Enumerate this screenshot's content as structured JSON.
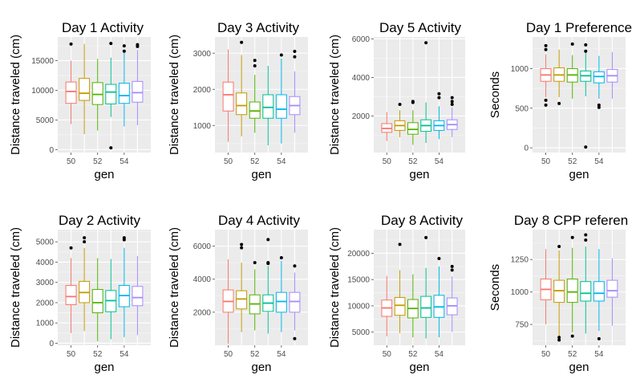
{
  "colors": {
    "panel_bg": "#ebebeb",
    "grid_major": "#ffffff",
    "grid_minor": "#f5f5f5",
    "outlier": "#000000",
    "groups": [
      "#F8766D",
      "#C49A00",
      "#53B400",
      "#00C094",
      "#00B6EB",
      "#A58AFF",
      "#FB61D7"
    ]
  },
  "chart_data": [
    {
      "type": "boxplot",
      "title": "Day 1 Activity",
      "xlabel": "gen",
      "ylabel": "Distance traveled (cm)",
      "categories": [
        "50",
        "51",
        "52",
        "53",
        "54",
        "55"
      ],
      "xticks": [
        "50",
        "52",
        "54"
      ],
      "yticks": [
        "0",
        "5000",
        "10000",
        "15000"
      ],
      "ylim": [
        -500,
        19000
      ],
      "boxes": [
        {
          "group": "50",
          "min": 4300,
          "q1": 7800,
          "median": 9800,
          "q3": 11400,
          "max": 15000,
          "outliers": [
            17800
          ]
        },
        {
          "group": "51",
          "min": 2600,
          "q1": 8300,
          "median": 9500,
          "q3": 12000,
          "max": 17800,
          "outliers": []
        },
        {
          "group": "52",
          "min": 3200,
          "q1": 7600,
          "median": 9300,
          "q3": 11300,
          "max": 15300,
          "outliers": []
        },
        {
          "group": "53",
          "min": 5500,
          "q1": 7700,
          "median": 9700,
          "q3": 11000,
          "max": 15500,
          "outliers": [
            300,
            17900
          ]
        },
        {
          "group": "54",
          "min": 3900,
          "q1": 7800,
          "median": 9100,
          "q3": 11200,
          "max": 16300,
          "outliers": [
            16600,
            17500
          ]
        },
        {
          "group": "55",
          "min": 4100,
          "q1": 8000,
          "median": 9600,
          "q3": 11500,
          "max": 16800,
          "outliers": [
            17400,
            17700
          ]
        }
      ]
    },
    {
      "type": "boxplot",
      "title": "Day 3 Activity",
      "xlabel": "gen",
      "ylabel": "Distance traveled (cm)",
      "categories": [
        "50",
        "51",
        "52",
        "53",
        "54",
        "55"
      ],
      "xticks": [
        "50",
        "52",
        "54"
      ],
      "yticks": [
        "1000",
        "2000",
        "3000"
      ],
      "ylim": [
        250,
        3450
      ],
      "boxes": [
        {
          "group": "50",
          "min": 550,
          "q1": 1400,
          "median": 1850,
          "q3": 2200,
          "max": 3100,
          "outliers": []
        },
        {
          "group": "51",
          "min": 700,
          "q1": 1300,
          "median": 1550,
          "q3": 1900,
          "max": 2950,
          "outliers": [
            3300
          ]
        },
        {
          "group": "52",
          "min": 800,
          "q1": 1200,
          "median": 1400,
          "q3": 1650,
          "max": 2400,
          "outliers": [
            2650,
            2800
          ]
        },
        {
          "group": "53",
          "min": 450,
          "q1": 1200,
          "median": 1500,
          "q3": 1850,
          "max": 2650,
          "outliers": []
        },
        {
          "group": "54",
          "min": 500,
          "q1": 1200,
          "median": 1450,
          "q3": 1850,
          "max": 2850,
          "outliers": [
            2950
          ]
        },
        {
          "group": "55",
          "min": 800,
          "q1": 1300,
          "median": 1550,
          "q3": 1800,
          "max": 2500,
          "outliers": [
            2900,
            3050
          ]
        }
      ]
    },
    {
      "type": "boxplot",
      "title": "Day 5 Activity",
      "xlabel": "gen",
      "ylabel": "Distance traveled (cm)",
      "categories": [
        "50",
        "51",
        "52",
        "53",
        "54",
        "55"
      ],
      "xticks": [
        "50",
        "52",
        "54"
      ],
      "yticks": [
        "2000",
        "4000",
        "6000"
      ],
      "ylim": [
        100,
        6100
      ],
      "boxes": [
        {
          "group": "50",
          "min": 700,
          "q1": 1150,
          "median": 1350,
          "q3": 1600,
          "max": 2200,
          "outliers": []
        },
        {
          "group": "51",
          "min": 900,
          "q1": 1250,
          "median": 1500,
          "q3": 1750,
          "max": 2300,
          "outliers": [
            2600
          ]
        },
        {
          "group": "52",
          "min": 500,
          "q1": 1050,
          "median": 1300,
          "q3": 1650,
          "max": 2300,
          "outliers": [
            2700,
            2750
          ]
        },
        {
          "group": "53",
          "min": 600,
          "q1": 1200,
          "median": 1500,
          "q3": 1800,
          "max": 2700,
          "outliers": [
            5800
          ]
        },
        {
          "group": "54",
          "min": 800,
          "q1": 1250,
          "median": 1500,
          "q3": 1750,
          "max": 2500,
          "outliers": [
            2950,
            3150
          ]
        },
        {
          "group": "55",
          "min": 900,
          "q1": 1300,
          "median": 1550,
          "q3": 1800,
          "max": 2450,
          "outliers": [
            2600,
            2750,
            2950
          ]
        }
      ]
    },
    {
      "type": "boxplot",
      "title": "Day 1 Preference",
      "xlabel": "gen",
      "ylabel": "Seconds",
      "categories": [
        "50",
        "51",
        "52",
        "53",
        "54",
        "55"
      ],
      "xticks": [
        "50",
        "52",
        "54"
      ],
      "yticks": [
        "0",
        "500",
        "1000"
      ],
      "ylim": [
        -60,
        1400
      ],
      "boxes": [
        {
          "group": "50",
          "min": 640,
          "q1": 840,
          "median": 920,
          "q3": 1000,
          "max": 1180,
          "outliers": [
            540,
            600,
            1240,
            1290
          ]
        },
        {
          "group": "51",
          "min": 640,
          "q1": 840,
          "median": 920,
          "q3": 1010,
          "max": 1240,
          "outliers": [
            560
          ]
        },
        {
          "group": "52",
          "min": 620,
          "q1": 830,
          "median": 920,
          "q3": 1000,
          "max": 1170,
          "outliers": [
            1310
          ]
        },
        {
          "group": "53",
          "min": 650,
          "q1": 840,
          "median": 910,
          "q3": 970,
          "max": 1200,
          "outliers": [
            10,
            1220,
            1300
          ]
        },
        {
          "group": "54",
          "min": 620,
          "q1": 820,
          "median": 900,
          "q3": 960,
          "max": 1160,
          "outliers": [
            510,
            540
          ]
        },
        {
          "group": "55",
          "min": 620,
          "q1": 830,
          "median": 910,
          "q3": 990,
          "max": 1210,
          "outliers": []
        }
      ]
    },
    {
      "type": "boxplot",
      "title": "Day 2 Activity",
      "xlabel": "gen",
      "ylabel": "Distance traveled (cm)",
      "categories": [
        "50",
        "51",
        "52",
        "53",
        "54",
        "55"
      ],
      "xticks": [
        "50",
        "52",
        "54"
      ],
      "yticks": [
        "0",
        "1000",
        "2000",
        "3000",
        "4000",
        "5000"
      ],
      "ylim": [
        -100,
        5600
      ],
      "boxes": [
        {
          "group": "50",
          "min": 500,
          "q1": 1900,
          "median": 2300,
          "q3": 2850,
          "max": 4200,
          "outliers": [
            4700
          ]
        },
        {
          "group": "51",
          "min": 600,
          "q1": 2000,
          "median": 2500,
          "q3": 3050,
          "max": 4700,
          "outliers": [
            5000,
            5200
          ]
        },
        {
          "group": "52",
          "min": 100,
          "q1": 1500,
          "median": 2000,
          "q3": 2650,
          "max": 4200,
          "outliers": []
        },
        {
          "group": "53",
          "min": 200,
          "q1": 1550,
          "median": 2100,
          "q3": 2600,
          "max": 4150,
          "outliers": []
        },
        {
          "group": "54",
          "min": 300,
          "q1": 1800,
          "median": 2350,
          "q3": 2850,
          "max": 4700,
          "outliers": [
            5100,
            5200
          ]
        },
        {
          "group": "55",
          "min": 400,
          "q1": 1850,
          "median": 2250,
          "q3": 2800,
          "max": 4300,
          "outliers": []
        }
      ]
    },
    {
      "type": "boxplot",
      "title": "Day 4 Activity",
      "xlabel": "gen",
      "ylabel": "Distance traveled (cm)",
      "categories": [
        "50",
        "51",
        "52",
        "53",
        "54",
        "55"
      ],
      "xticks": [
        "50",
        "52",
        "54"
      ],
      "yticks": [
        "2000",
        "4000",
        "6000"
      ],
      "ylim": [
        0,
        7000
      ],
      "boxes": [
        {
          "group": "50",
          "min": 100,
          "q1": 2000,
          "median": 2650,
          "q3": 3350,
          "max": 5200,
          "outliers": []
        },
        {
          "group": "51",
          "min": 800,
          "q1": 2200,
          "median": 2800,
          "q3": 3300,
          "max": 5000,
          "outliers": [
            5900,
            6100
          ]
        },
        {
          "group": "52",
          "min": 900,
          "q1": 1900,
          "median": 2500,
          "q3": 3050,
          "max": 4600,
          "outliers": [
            5000
          ]
        },
        {
          "group": "53",
          "min": 700,
          "q1": 2050,
          "median": 2550,
          "q3": 3050,
          "max": 4800,
          "outliers": [
            4950,
            5000,
            6400
          ]
        },
        {
          "group": "54",
          "min": 800,
          "q1": 2000,
          "median": 2650,
          "q3": 3200,
          "max": 5100,
          "outliers": [
            5300
          ]
        },
        {
          "group": "55",
          "min": 900,
          "q1": 2000,
          "median": 2650,
          "q3": 3200,
          "max": 4400,
          "outliers": [
            400,
            4800
          ]
        }
      ]
    },
    {
      "type": "boxplot",
      "title": "Day 8 Activity",
      "xlabel": "gen",
      "ylabel": "Distance traveled (cm)",
      "categories": [
        "50",
        "51",
        "52",
        "53",
        "54",
        "55"
      ],
      "xticks": [
        "50",
        "52",
        "54"
      ],
      "yticks": [
        "5000",
        "10000",
        "15000",
        "20000"
      ],
      "ylim": [
        2500,
        24500
      ],
      "boxes": [
        {
          "group": "50",
          "min": 4200,
          "q1": 8000,
          "median": 9600,
          "q3": 11100,
          "max": 15700,
          "outliers": []
        },
        {
          "group": "51",
          "min": 4800,
          "q1": 8200,
          "median": 10100,
          "q3": 11600,
          "max": 16800,
          "outliers": [
            21700
          ]
        },
        {
          "group": "52",
          "min": 4000,
          "q1": 7700,
          "median": 9500,
          "q3": 11200,
          "max": 16000,
          "outliers": []
        },
        {
          "group": "53",
          "min": 3800,
          "q1": 7800,
          "median": 9600,
          "q3": 11800,
          "max": 17200,
          "outliers": [
            23000
          ]
        },
        {
          "group": "54",
          "min": 4000,
          "q1": 7800,
          "median": 9800,
          "q3": 12000,
          "max": 17500,
          "outliers": [
            19000
          ]
        },
        {
          "group": "55",
          "min": 5000,
          "q1": 8300,
          "median": 10000,
          "q3": 11500,
          "max": 15600,
          "outliers": [
            16800,
            17500
          ]
        }
      ]
    },
    {
      "type": "boxplot",
      "title": "Day 8  CPP referen",
      "xlabel": "gen",
      "ylabel": "Seconds",
      "categories": [
        "50",
        "51",
        "52",
        "53",
        "54",
        "55"
      ],
      "xticks": [
        "50",
        "52",
        "54"
      ],
      "yticks": [
        "750",
        "1000",
        "1250"
      ],
      "ylim": [
        590,
        1480
      ],
      "boxes": [
        {
          "group": "50",
          "min": 750,
          "q1": 940,
          "median": 1020,
          "q3": 1100,
          "max": 1330,
          "outliers": []
        },
        {
          "group": "51",
          "min": 660,
          "q1": 920,
          "median": 1010,
          "q3": 1090,
          "max": 1320,
          "outliers": [
            630,
            650,
            1350
          ]
        },
        {
          "group": "52",
          "min": 690,
          "q1": 920,
          "median": 1000,
          "q3": 1100,
          "max": 1340,
          "outliers": [
            660,
            1420
          ]
        },
        {
          "group": "53",
          "min": 680,
          "q1": 930,
          "median": 990,
          "q3": 1080,
          "max": 1350,
          "outliers": [
            1400,
            1440
          ]
        },
        {
          "group": "54",
          "min": 700,
          "q1": 930,
          "median": 990,
          "q3": 1080,
          "max": 1330,
          "outliers": [
            640
          ]
        },
        {
          "group": "55",
          "min": 740,
          "q1": 960,
          "median": 1010,
          "q3": 1090,
          "max": 1260,
          "outliers": []
        }
      ]
    }
  ]
}
